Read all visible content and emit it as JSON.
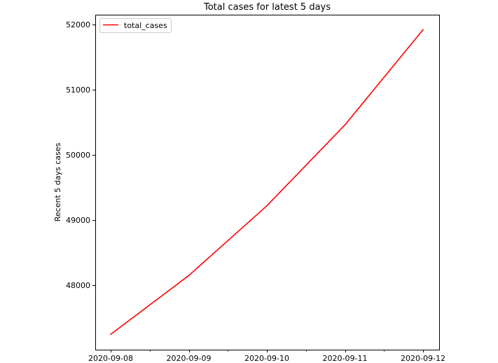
{
  "chart_data": {
    "type": "line",
    "title": "Total cases for latest 5 days",
    "xlabel": "",
    "ylabel": "Recent 5 days cases",
    "x": [
      "2020-09-08",
      "2020-09-09",
      "2020-09-10",
      "2020-09-11",
      "2020-09-12"
    ],
    "x_minor_ticks": [
      "2020-09-08 12:00",
      "2020-09-09 12:00",
      "2020-09-10 12:00",
      "2020-09-11 12:00"
    ],
    "series": [
      {
        "name": "total_cases",
        "color": "#ff0000",
        "values": [
          47245,
          48148,
          49218,
          50460,
          51920
        ]
      }
    ],
    "yticks": [
      48000,
      49000,
      50000,
      51000,
      52000
    ],
    "ytick_labels": [
      "48000",
      "49000",
      "50000",
      "51000",
      "52000"
    ],
    "ylim": [
      47010,
      52150
    ],
    "grid": false,
    "legend_position": "upper-left",
    "colors": {
      "axis": "#000000",
      "background": "#ffffff"
    }
  }
}
